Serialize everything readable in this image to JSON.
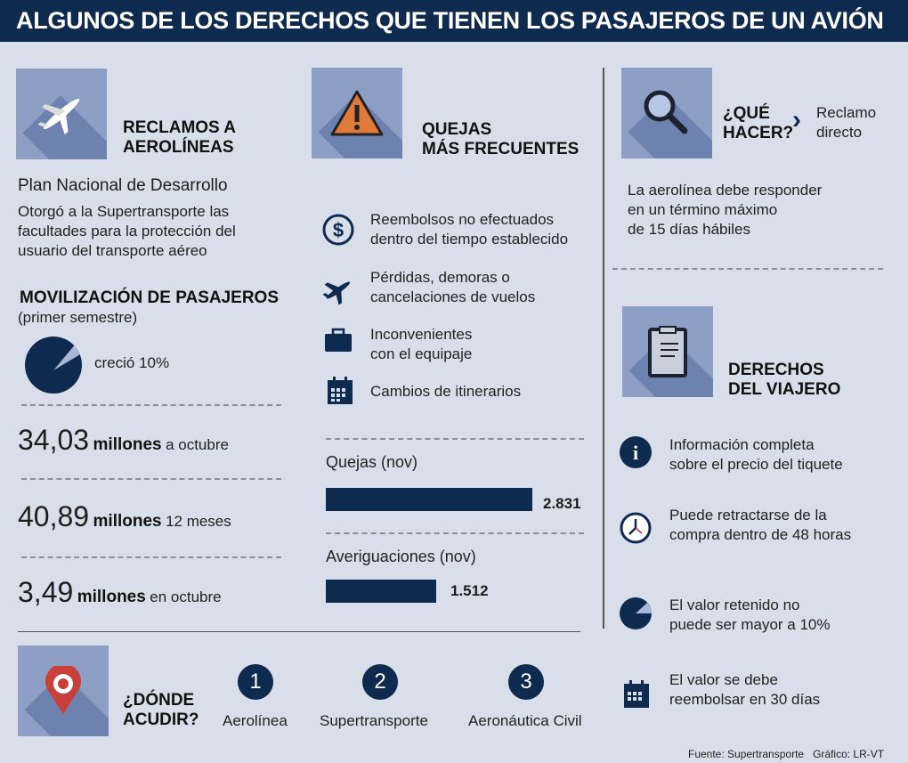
{
  "header": {
    "title": "ALGUNOS DE LOS DERECHOS QUE TIENEN LOS PASAJEROS DE UN AVIÓN"
  },
  "colors": {
    "navy": "#0e2a4e",
    "background": "#d8dfea",
    "tile": "#8e9fc5"
  },
  "reclamos": {
    "title_1": "RECLAMOS A",
    "title_2": "AEROLÍNEAS",
    "subtitle": "Plan Nacional de Desarrollo",
    "text_1": "Otorgó a la Supertransporte las",
    "text_2": "facultades para la protección del",
    "text_3": "usuario del transporte aéreo"
  },
  "movilizacion": {
    "title": "MOVILIZACIÓN DE PASAJEROS",
    "subtitle": "(primer semestre)",
    "growth_label": "creció 10%",
    "growth_percent": 10,
    "stats": [
      {
        "value": "34,03",
        "unit": "millones",
        "note": "a octubre"
      },
      {
        "value": "40,89",
        "unit": "millones",
        "note": "12 meses"
      },
      {
        "value": "3,49",
        "unit": "millones",
        "note": "en octubre"
      }
    ]
  },
  "quejas": {
    "title_1": "QUEJAS",
    "title_2": "MÁS FRECUENTES",
    "items": [
      {
        "icon": "dollar-icon",
        "line1": "Reembolsos no efectuados",
        "line2": "dentro del tiempo establecido"
      },
      {
        "icon": "airplane-icon",
        "line1": "Pérdidas, demoras o",
        "line2": "cancelaciones de vuelos"
      },
      {
        "icon": "briefcase-icon",
        "line1": "Inconvenientes",
        "line2": "con el equipaje"
      },
      {
        "icon": "calendar-icon",
        "line1": "Cambios de itinerarios",
        "line2": ""
      }
    ],
    "bars": [
      {
        "label": "Quejas (nov)",
        "value": 2831,
        "display": "2.831"
      },
      {
        "label": "Averiguaciones (nov)",
        "value": 1512,
        "display": "1.512"
      }
    ]
  },
  "que_hacer": {
    "title_1": "¿QUÉ",
    "title_2": "HACER?",
    "answer_1": "Reclamo",
    "answer_2": "directo",
    "text_1": "La aerolínea debe responder",
    "text_2": "en un término máximo",
    "text_3": "de 15 días hábiles"
  },
  "derechos": {
    "title_1": "DERECHOS",
    "title_2": "DEL VIAJERO",
    "items": [
      {
        "icon": "info-icon",
        "line1": "Información completa",
        "line2": "sobre el precio del tiquete"
      },
      {
        "icon": "clock-icon",
        "line1": "Puede retractarse de la",
        "line2": "compra dentro de 48 horas"
      },
      {
        "icon": "pie-icon",
        "line1": "El valor retenido no",
        "line2": "puede ser mayor a 10%"
      },
      {
        "icon": "calendar-icon",
        "line1": "El valor se debe",
        "line2": "reembolsar en 30 días"
      }
    ]
  },
  "donde": {
    "title_1": "¿DÓNDE",
    "title_2": "ACUDIR?",
    "options": [
      {
        "number": "1",
        "label": "Aerolínea"
      },
      {
        "number": "2",
        "label": "Supertransporte"
      },
      {
        "number": "3",
        "label": "Aeronáutica Civil"
      }
    ]
  },
  "footer": {
    "source": "Fuente: Supertransporte",
    "credit": "Gráfico: LR-VT"
  }
}
